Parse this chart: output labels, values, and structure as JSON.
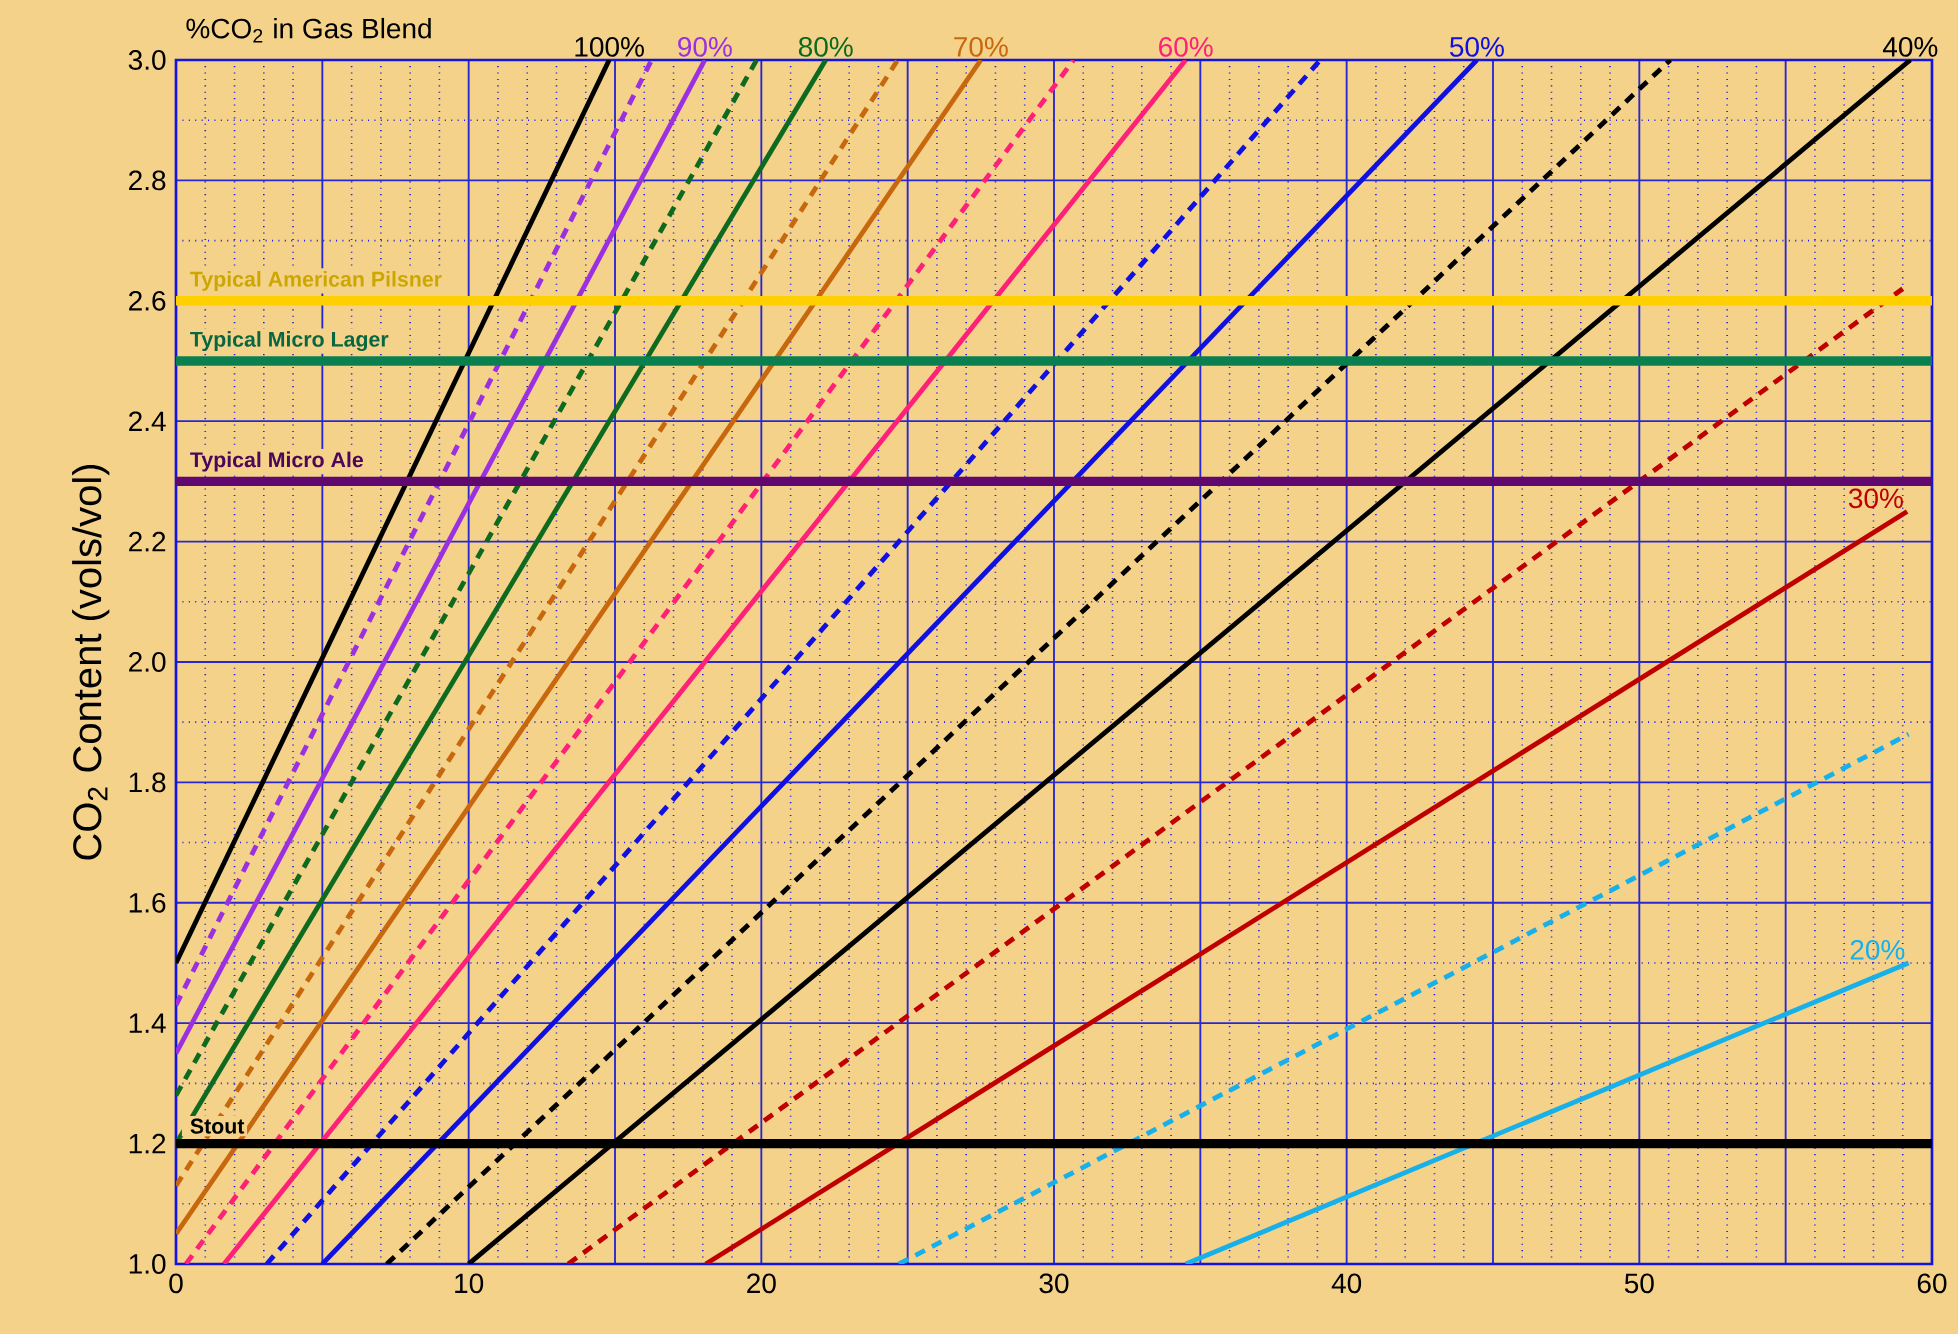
{
  "chart_data": {
    "type": "line",
    "title": "%CO$_{2}$ in Gas Blend",
    "ylabel": "CO$_{2}$ Content (vols/vol)",
    "xlim": [
      0,
      60
    ],
    "ylim": [
      1.0,
      3.0
    ],
    "xticks": [
      0,
      {
        "value": 1,
        "label": null
      },
      {
        "value": 2,
        "label": null
      },
      {
        "value": 3,
        "label": null
      },
      {
        "value": 4,
        "label": null
      },
      {
        "value": 5,
        "label": null
      },
      {
        "value": 6,
        "label": null
      },
      {
        "value": 7,
        "label": null
      },
      {
        "value": 8,
        "label": null
      },
      {
        "value": 9,
        "label": null
      },
      10,
      {
        "value": 11,
        "label": null
      },
      {
        "value": 12,
        "label": null
      },
      {
        "value": 13,
        "label": null
      },
      {
        "value": 14,
        "label": null
      },
      {
        "value": 15,
        "label": null
      },
      {
        "value": 16,
        "label": null
      },
      {
        "value": 17,
        "label": null
      },
      {
        "value": 18,
        "label": null
      },
      {
        "value": 19,
        "label": null
      },
      20,
      {
        "value": 21,
        "label": null
      },
      {
        "value": 22,
        "label": null
      },
      {
        "value": 23,
        "label": null
      },
      {
        "value": 24,
        "label": null
      },
      {
        "value": 25,
        "label": null
      },
      {
        "value": 26,
        "label": null
      },
      {
        "value": 27,
        "label": null
      },
      {
        "value": 28,
        "label": null
      },
      {
        "value": 29,
        "label": null
      },
      30,
      {
        "value": 31,
        "label": null
      },
      {
        "value": 32,
        "label": null
      },
      {
        "value": 33,
        "label": null
      },
      {
        "value": 34,
        "label": null
      },
      {
        "value": 35,
        "label": null
      },
      {
        "value": 36,
        "label": null
      },
      {
        "value": 37,
        "label": null
      },
      {
        "value": 38,
        "label": null
      },
      {
        "value": 39,
        "label": null
      },
      40,
      {
        "value": 41,
        "label": null
      },
      {
        "value": 42,
        "label": null
      },
      {
        "value": 43,
        "label": null
      },
      {
        "value": 44,
        "label": null
      },
      {
        "value": 45,
        "label": null
      },
      {
        "value": 46,
        "label": null
      },
      {
        "value": 47,
        "label": null
      },
      {
        "value": 48,
        "label": null
      },
      {
        "value": 49,
        "label": null
      },
      50,
      {
        "value": 51,
        "label": null
      },
      {
        "value": 52,
        "label": null
      },
      {
        "value": 53,
        "label": null
      },
      {
        "value": 54,
        "label": null
      },
      {
        "value": 55,
        "label": null
      },
      {
        "value": 56,
        "label": null
      },
      {
        "value": 57,
        "label": null
      },
      {
        "value": 58,
        "label": null
      },
      {
        "value": 59,
        "label": null
      },
      60
    ],
    "yticks": [
      {
        "value": 1.0,
        "label": "1.0"
      },
      {
        "value": 1.1,
        "label": null
      },
      1.2,
      {
        "value": 1.3,
        "label": null
      },
      1.4,
      {
        "value": 1.5,
        "label": null
      },
      1.6,
      {
        "value": 1.7,
        "label": null
      },
      1.8,
      {
        "value": 1.9,
        "label": null
      },
      {
        "value": 2.0,
        "label": "2.0"
      },
      {
        "value": 2.1,
        "label": null
      },
      2.2,
      {
        "value": 2.3,
        "label": null
      },
      2.4,
      {
        "value": 2.5,
        "label": null
      },
      2.6,
      {
        "value": 2.7,
        "label": null
      },
      2.8,
      {
        "value": 2.9,
        "label": null
      },
      {
        "value": 3.0,
        "label": "3.0"
      }
    ],
    "grid": true,
    "marker": "none",
    "series": [
      {
        "name": "100%",
        "color": "#000000",
        "line_style": "solid",
        "x": [
          0,
          14.8
        ],
        "values": [
          1.5,
          3.0
        ]
      },
      {
        "color": "#9b30e0",
        "line_style": "dashed",
        "x": [
          0,
          16.25
        ],
        "values": [
          1.43,
          3.0
        ]
      },
      {
        "name": "90%",
        "color": "#9b30e0",
        "line_style": "solid",
        "x": [
          0,
          18.07
        ],
        "values": [
          1.35,
          3.0
        ]
      },
      {
        "color": "#0e6a1e",
        "line_style": "dashed",
        "x": [
          0,
          19.84
        ],
        "values": [
          1.28,
          3.0
        ]
      },
      {
        "name": "80%",
        "color": "#0e6a1e",
        "line_style": "solid",
        "x": [
          0,
          22.2
        ],
        "values": [
          1.2,
          3.0
        ]
      },
      {
        "color": "#c8680e",
        "line_style": "dashed",
        "x": [
          0,
          24.66
        ],
        "values": [
          1.13,
          3.0
        ]
      },
      {
        "name": "70%",
        "color": "#c8680e",
        "line_style": "solid",
        "x": [
          0,
          27.5
        ],
        "values": [
          1.05,
          3.0
        ]
      },
      {
        "color": "#ff2078",
        "line_style": "dashed",
        "x": [
          0.34,
          30.67
        ],
        "values": [
          1.0,
          3.0
        ]
      },
      {
        "name": "60%",
        "color": "#ff2078",
        "line_style": "solid",
        "x": [
          1.64,
          34.5
        ],
        "values": [
          1.0,
          3.0
        ]
      },
      {
        "color": "#1010e0",
        "line_style": "dashed",
        "x": [
          3.1,
          39.1
        ],
        "values": [
          1.0,
          3.0
        ]
      },
      {
        "name": "50%",
        "color": "#1010e0",
        "line_style": "solid",
        "x": [
          5.0,
          44.45
        ],
        "values": [
          1.0,
          3.0
        ]
      },
      {
        "color": "#000000",
        "line_style": "dashed",
        "x": [
          7.2,
          51.06
        ],
        "values": [
          1.0,
          3.0
        ]
      },
      {
        "name": "40%",
        "color": "#000000",
        "line_style": "solid",
        "x": [
          10.0,
          59.26
        ],
        "values": [
          1.0,
          3.0
        ]
      },
      {
        "color": "#c00000",
        "line_style": "dashed",
        "x": [
          13.4,
          59.0
        ],
        "values": [
          1.0,
          2.62
        ]
      },
      {
        "name": "30%",
        "color": "#c00000",
        "line_style": "solid",
        "x": [
          18.1,
          59.15
        ],
        "values": [
          1.0,
          2.25
        ]
      },
      {
        "color": "#18b0e8",
        "line_style": "dashed",
        "x": [
          24.7,
          59.2
        ],
        "values": [
          1.0,
          1.88
        ]
      },
      {
        "name": "20%",
        "color": "#18b0e8",
        "line_style": "solid",
        "x": [
          34.5,
          59.2
        ],
        "values": [
          1.0,
          1.5
        ]
      }
    ],
    "ref_lines": [
      {
        "axis": "y",
        "value": 2.6,
        "label": "Typical American Pilsner",
        "color": "#ffd000"
      },
      {
        "axis": "y",
        "value": 2.5,
        "label": "Typical Micro Lager",
        "color": "#0a8050"
      },
      {
        "axis": "y",
        "value": 2.3,
        "label": "Typical Micro Ale",
        "color": "#600870"
      },
      {
        "axis": "y",
        "value": 1.2,
        "label": "Stout",
        "color": "#000000"
      }
    ]
  }
}
